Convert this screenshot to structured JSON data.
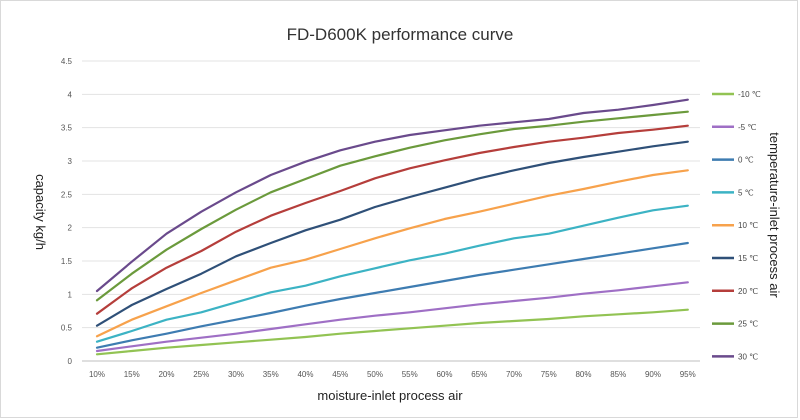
{
  "chart_data": {
    "type": "line",
    "title": "FD-D600K performance curve",
    "xlabel": "moisture-inlet process air",
    "ylabel": "capacity kg/h",
    "legend_title": "temperature-inlet process air",
    "legend_position": "right",
    "grid": true,
    "ylim": [
      0,
      4.5
    ],
    "yticks": [
      "0",
      "0.5",
      "1",
      "1.5",
      "2",
      "2.5",
      "3",
      "3.5",
      "4",
      "4.5"
    ],
    "categories": [
      "10%",
      "15%",
      "20%",
      "25%",
      "30%",
      "35%",
      "40%",
      "45%",
      "50%",
      "55%",
      "60%",
      "65%",
      "70%",
      "75%",
      "80%",
      "85%",
      "90%",
      "95%"
    ],
    "series": [
      {
        "name": "-10 ℃",
        "color": "#92c353",
        "values": [
          0.1,
          0.15,
          0.2,
          0.24,
          0.28,
          0.32,
          0.36,
          0.41,
          0.45,
          0.49,
          0.53,
          0.57,
          0.6,
          0.63,
          0.67,
          0.7,
          0.73,
          0.77
        ]
      },
      {
        "name": "-5 ℃",
        "color": "#9f6fc5",
        "values": [
          0.15,
          0.22,
          0.29,
          0.35,
          0.41,
          0.48,
          0.55,
          0.62,
          0.68,
          0.73,
          0.79,
          0.85,
          0.9,
          0.95,
          1.01,
          1.06,
          1.12,
          1.18
        ]
      },
      {
        "name": "0 ℃",
        "color": "#3e7cb1",
        "values": [
          0.2,
          0.31,
          0.41,
          0.52,
          0.62,
          0.72,
          0.83,
          0.93,
          1.02,
          1.11,
          1.2,
          1.29,
          1.37,
          1.45,
          1.53,
          1.61,
          1.69,
          1.77
        ]
      },
      {
        "name": "5 ℃",
        "color": "#3cb3c4",
        "values": [
          0.29,
          0.45,
          0.62,
          0.73,
          0.88,
          1.03,
          1.13,
          1.27,
          1.39,
          1.51,
          1.61,
          1.73,
          1.84,
          1.91,
          2.03,
          2.15,
          2.26,
          2.33
        ]
      },
      {
        "name": "10 ℃",
        "color": "#f7a24c",
        "values": [
          0.37,
          0.62,
          0.82,
          1.02,
          1.21,
          1.4,
          1.52,
          1.68,
          1.84,
          1.99,
          2.13,
          2.24,
          2.36,
          2.48,
          2.58,
          2.69,
          2.79,
          2.86
        ]
      },
      {
        "name": "15 ℃",
        "color": "#2f5078",
        "values": [
          0.53,
          0.84,
          1.08,
          1.31,
          1.57,
          1.77,
          1.96,
          2.12,
          2.31,
          2.46,
          2.6,
          2.74,
          2.86,
          2.97,
          3.06,
          3.14,
          3.22,
          3.29
        ]
      },
      {
        "name": "20 ℃",
        "color": "#b53e3b",
        "values": [
          0.71,
          1.09,
          1.4,
          1.65,
          1.94,
          2.18,
          2.37,
          2.55,
          2.74,
          2.89,
          3.01,
          3.12,
          3.21,
          3.29,
          3.35,
          3.42,
          3.47,
          3.53
        ]
      },
      {
        "name": "25 ℃",
        "color": "#6b9a3c",
        "values": [
          0.91,
          1.31,
          1.67,
          1.98,
          2.27,
          2.53,
          2.73,
          2.93,
          3.07,
          3.2,
          3.31,
          3.4,
          3.48,
          3.53,
          3.59,
          3.64,
          3.69,
          3.74
        ]
      },
      {
        "name": "30 ℃",
        "color": "#6a4a8c",
        "values": [
          1.05,
          1.49,
          1.91,
          2.24,
          2.53,
          2.79,
          2.99,
          3.16,
          3.29,
          3.39,
          3.46,
          3.53,
          3.58,
          3.63,
          3.72,
          3.77,
          3.84,
          3.92
        ]
      }
    ]
  }
}
